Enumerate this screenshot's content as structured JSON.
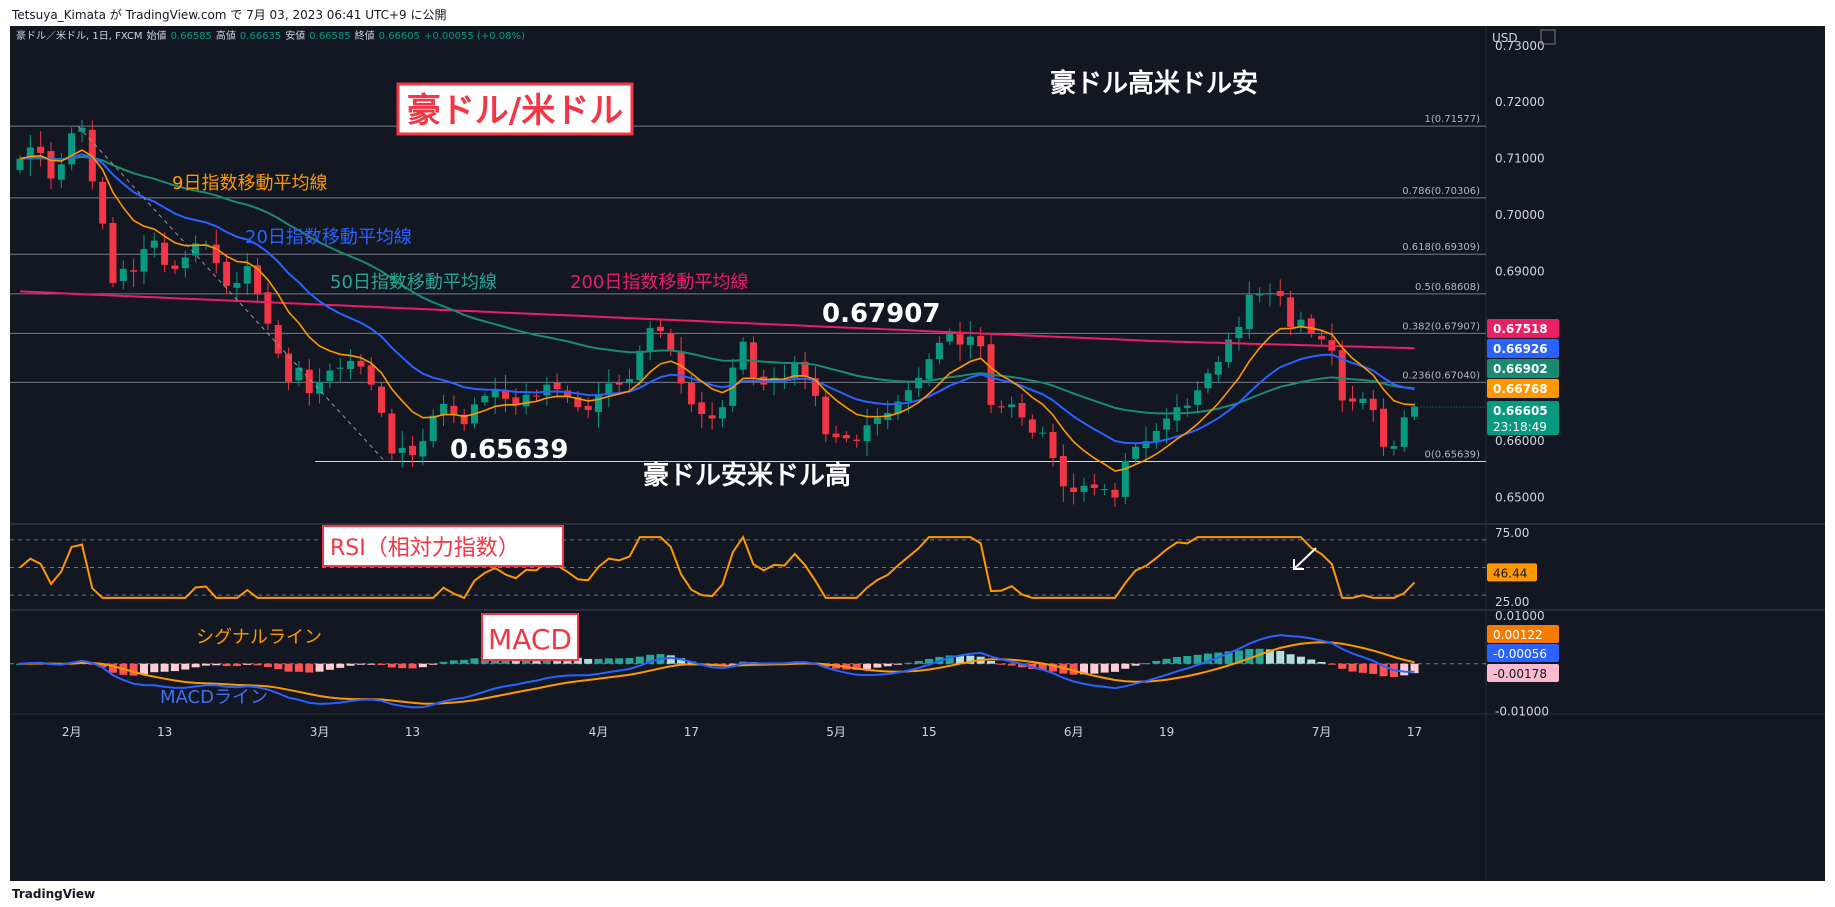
{
  "header": {
    "publisher": "Tetsuya_Kimata が TradingView.com で 7月 03, 2023 06:41 UTC+9 に公開"
  },
  "footer": {
    "brand": "TradingView"
  },
  "legend": {
    "symbol": "豪ドル／米ドル, 1日, FXCM",
    "o_label": "始値",
    "o": "0.66585",
    "h_label": "高値",
    "h": "0.66635",
    "l_label": "安値",
    "l": "0.66585",
    "c_label": "終値",
    "c": "0.66605",
    "chg": "+0.00055 (+0.08%)"
  },
  "annotations": {
    "main_title": "豪ドル/米ドル",
    "top_right": "豪ドル高米ドル安",
    "bottom_mid": "豪ドル安米ドル高",
    "high_label": "0.67907",
    "low_label": "0.65639",
    "ema9": "9日指数移動平均線",
    "ema20": "20日指数移動平均線",
    "ema50": "50日指数移動平均線",
    "ema200": "200日指数移動平均線",
    "rsi_title": "RSI（相対力指数）",
    "macd_title": "MACD",
    "signal_label": "シグナルライン",
    "macd_label": "MACDライン"
  },
  "colors": {
    "background": "#131722",
    "up": "#089981",
    "down": "#f23645",
    "ema9": "#ff9800",
    "ema20": "#2962ff",
    "ema50": "#1b8a73",
    "ema200": "#e91e63",
    "rsi": "#ff9800",
    "macd": "#2962ff",
    "signal": "#ff9800",
    "title_red": "#f23645"
  },
  "chart_data": [
    {
      "type": "candlestick",
      "pane": "price",
      "y_axis_label": "USD",
      "ylim": [
        0.6455,
        0.7335
      ],
      "ticks": [
        "0.73000",
        "0.72000",
        "0.71000",
        "0.70000",
        "0.69000",
        "0.68000",
        "0.67000",
        "0.66000",
        "0.65000"
      ],
      "tick_values": [
        0.73,
        0.72,
        0.71,
        0.7,
        0.69,
        0.68,
        0.67,
        0.66,
        0.65
      ],
      "x_labels": [
        "2月",
        "13",
        "3月",
        "13",
        "4月",
        "17",
        "5月",
        "15",
        "6月",
        "19",
        "7月",
        "17"
      ],
      "x_label_index": [
        5,
        14,
        29,
        38,
        56,
        65,
        79,
        88,
        102,
        111,
        126,
        135
      ],
      "fib_levels": [
        {
          "label": "1(0.71577)",
          "value": 0.71577
        },
        {
          "label": "0.786(0.70306)",
          "value": 0.70306
        },
        {
          "label": "0.618(0.69309)",
          "value": 0.69309
        },
        {
          "label": "0.5(0.68608)",
          "value": 0.68608
        },
        {
          "label": "0.382(0.67907)",
          "value": 0.67907
        },
        {
          "label": "0.236(0.67040)",
          "value": 0.6704
        },
        {
          "label": "0(0.65639)",
          "value": 0.65639
        }
      ],
      "price_tags": [
        {
          "text": "0.67518",
          "value": 0.67518,
          "color": "#e91e63"
        },
        {
          "text": "0.66926",
          "value": 0.66926,
          "color": "#2962ff"
        },
        {
          "text": "0.66902",
          "value": 0.66902,
          "color": "#1b8a73"
        },
        {
          "text": "0.66768",
          "value": 0.66768,
          "color": "#ff9800"
        },
        {
          "text": "0.66605",
          "value": 0.66605,
          "color": "#089981",
          "sub": "23:18:49"
        }
      ],
      "closes": [
        0.71,
        0.712,
        0.711,
        0.7065,
        0.709,
        0.7145,
        0.7155,
        0.706,
        0.6985,
        0.688,
        0.6905,
        0.69,
        0.694,
        0.6955,
        0.6912,
        0.6905,
        0.6925,
        0.695,
        0.6948,
        0.6915,
        0.6875,
        0.688,
        0.691,
        0.686,
        0.6808,
        0.6755,
        0.6705,
        0.673,
        0.6685,
        0.6705,
        0.6725,
        0.673,
        0.6742,
        0.6732,
        0.67,
        0.665,
        0.6578,
        0.6588,
        0.6575,
        0.66,
        0.6645,
        0.6666,
        0.6648,
        0.663,
        0.6665,
        0.668,
        0.669,
        0.6675,
        0.6665,
        0.6682,
        0.668,
        0.67,
        0.6692,
        0.6678,
        0.666,
        0.6655,
        0.6683,
        0.6702,
        0.67,
        0.671,
        0.676,
        0.68,
        0.6795,
        0.676,
        0.6702,
        0.6665,
        0.6648,
        0.664,
        0.666,
        0.673,
        0.6776,
        0.6713,
        0.67,
        0.6712,
        0.6711,
        0.6738,
        0.6715,
        0.668,
        0.6612,
        0.6607,
        0.6605,
        0.66,
        0.6628,
        0.6641,
        0.665,
        0.667,
        0.669,
        0.6712,
        0.6745,
        0.6774,
        0.6793,
        0.6771,
        0.6785,
        0.6768,
        0.6664,
        0.666,
        0.6665,
        0.6642,
        0.6615,
        0.6615,
        0.657,
        0.652,
        0.651,
        0.6521,
        0.6517,
        0.6515,
        0.65,
        0.6565,
        0.659,
        0.66,
        0.6618,
        0.664,
        0.666,
        0.6663,
        0.669,
        0.672,
        0.674,
        0.678,
        0.6802,
        0.6859,
        0.686,
        0.6862,
        0.6857,
        0.6802,
        0.6815,
        0.679,
        0.678,
        0.676,
        0.6672,
        0.667,
        0.6675,
        0.6655,
        0.659,
        0.6591,
        0.6642,
        0.6661
      ],
      "last_close": 0.66605
    },
    {
      "type": "line",
      "pane": "rsi",
      "name": "RSI",
      "ylim": [
        20,
        80
      ],
      "ticks": [
        "75.00",
        "25.00"
      ],
      "tick_values": [
        75,
        25
      ],
      "bands": [
        70,
        50,
        30
      ],
      "last_value": "46.44"
    },
    {
      "type": "bar+line",
      "pane": "macd",
      "name": "MACD",
      "ylim": [
        -0.0105,
        0.0108
      ],
      "ticks": [
        "0.01000",
        "-0.01000"
      ],
      "tick_values": [
        0.01,
        -0.01
      ],
      "tags": [
        {
          "text": "0.00122",
          "value": 0.00122,
          "color": "#f57c00"
        },
        {
          "text": "-0.00056",
          "value": -0.00056,
          "color": "#2962ff"
        },
        {
          "text": "-0.00178",
          "value": -0.00178,
          "color": "#f8bbd0",
          "dark": true
        }
      ]
    }
  ]
}
